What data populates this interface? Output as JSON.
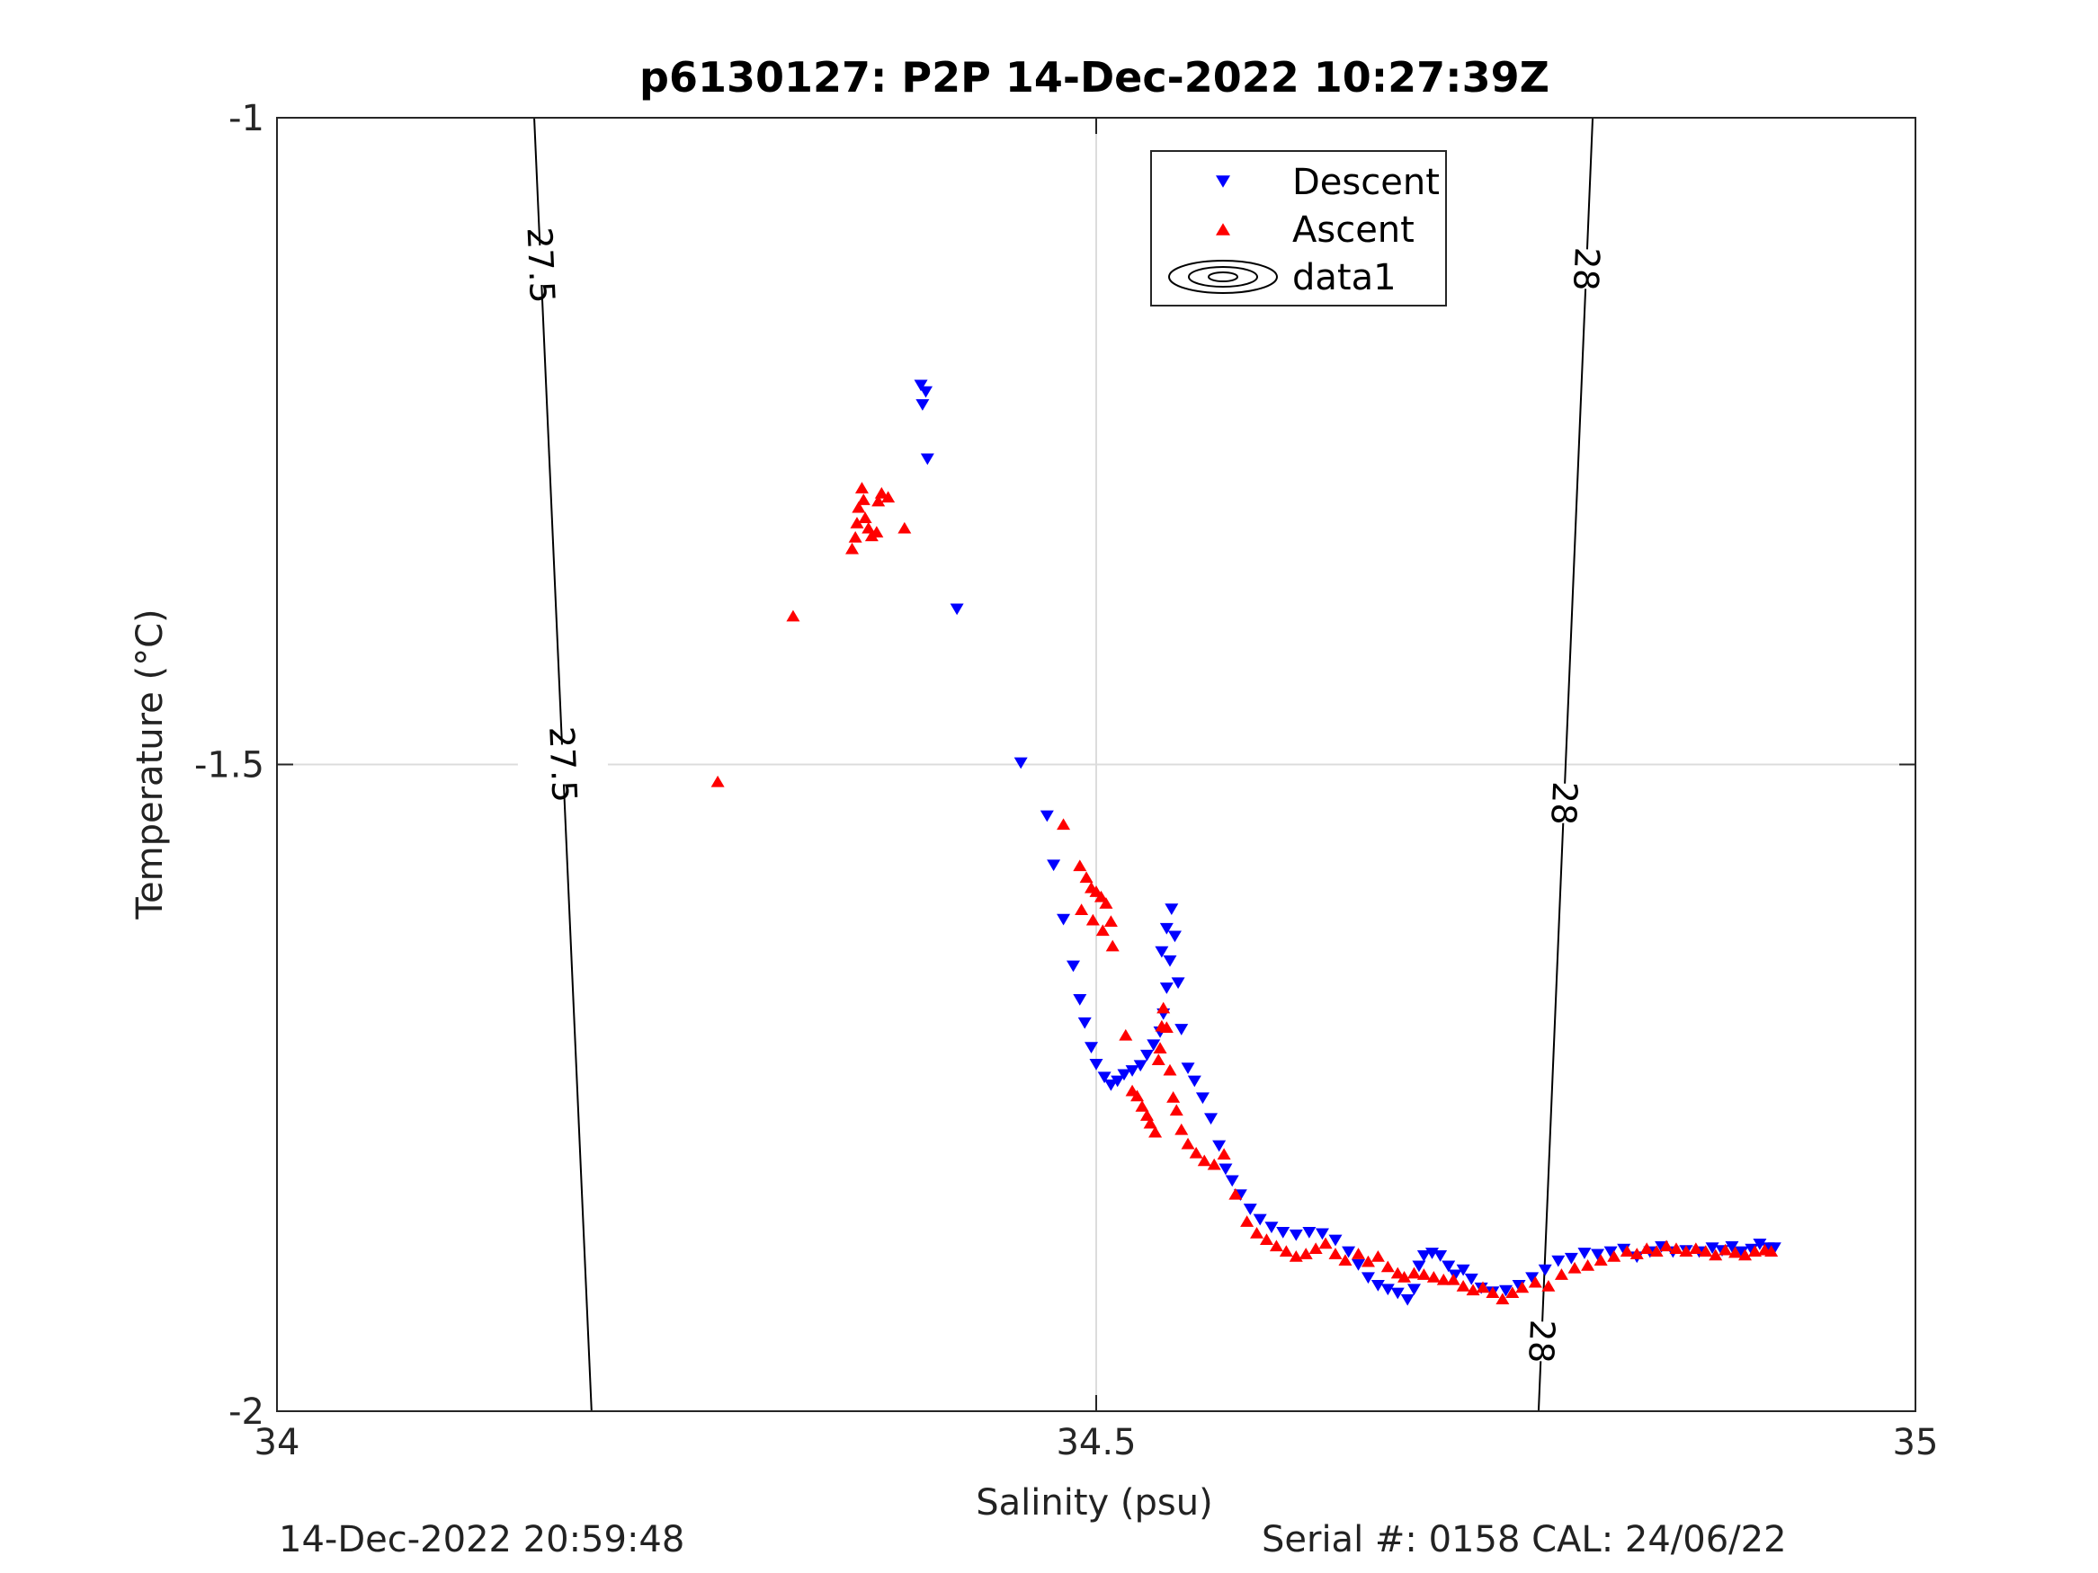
{
  "chart_data": {
    "type": "scatter",
    "title": "p6130127: P2P 14-Dec-2022 10:27:39Z",
    "xlabel": "Salinity (psu)",
    "ylabel": "Temperature (°C)",
    "xlim": [
      34,
      35
    ],
    "ylim": [
      -2,
      -1
    ],
    "xticks": [
      34,
      34.5,
      35
    ],
    "xtick_labels": [
      "34",
      "34.5",
      "35"
    ],
    "yticks": [
      -2,
      -1.5,
      -1
    ],
    "ytick_labels": [
      "-2",
      "-1.5",
      "-1"
    ],
    "grid": true,
    "legend_position": "top-center",
    "legend": [
      {
        "label": "Descent",
        "marker": "triangle-down",
        "color": "#0000ff"
      },
      {
        "label": "Ascent",
        "marker": "triangle-up",
        "color": "#ff0000"
      },
      {
        "label": "data1",
        "marker": "contour",
        "color": "#000000"
      }
    ],
    "series": [
      {
        "name": "Descent",
        "color": "#0000ff",
        "marker": "triangle-down",
        "points": [
          [
            34.393,
            -1.207
          ],
          [
            34.396,
            -1.212
          ],
          [
            34.394,
            -1.222
          ],
          [
            34.397,
            -1.264
          ],
          [
            34.415,
            -1.38
          ],
          [
            34.454,
            -1.499
          ],
          [
            34.47,
            -1.54
          ],
          [
            34.474,
            -1.578
          ],
          [
            34.48,
            -1.62
          ],
          [
            34.486,
            -1.656
          ],
          [
            34.49,
            -1.682
          ],
          [
            34.493,
            -1.7
          ],
          [
            34.497,
            -1.719
          ],
          [
            34.5,
            -1.732
          ],
          [
            34.505,
            -1.742
          ],
          [
            34.509,
            -1.748
          ],
          [
            34.513,
            -1.745
          ],
          [
            34.517,
            -1.74
          ],
          [
            34.522,
            -1.737
          ],
          [
            34.527,
            -1.733
          ],
          [
            34.531,
            -1.725
          ],
          [
            34.535,
            -1.717
          ],
          [
            34.539,
            -1.707
          ],
          [
            34.541,
            -1.693
          ],
          [
            34.543,
            -1.673
          ],
          [
            34.545,
            -1.652
          ],
          [
            34.548,
            -1.633
          ],
          [
            34.546,
            -1.612
          ],
          [
            34.543,
            -1.627
          ],
          [
            34.54,
            -1.645
          ],
          [
            34.55,
            -1.669
          ],
          [
            34.552,
            -1.705
          ],
          [
            34.556,
            -1.735
          ],
          [
            34.56,
            -1.745
          ],
          [
            34.565,
            -1.758
          ],
          [
            34.57,
            -1.774
          ],
          [
            34.575,
            -1.795
          ],
          [
            34.579,
            -1.813
          ],
          [
            34.583,
            -1.822
          ],
          [
            34.588,
            -1.833
          ],
          [
            34.594,
            -1.844
          ],
          [
            34.6,
            -1.852
          ],
          [
            34.607,
            -1.858
          ],
          [
            34.614,
            -1.862
          ],
          [
            34.622,
            -1.864
          ],
          [
            34.63,
            -1.862
          ],
          [
            34.638,
            -1.863
          ],
          [
            34.646,
            -1.868
          ],
          [
            34.654,
            -1.877
          ],
          [
            34.66,
            -1.887
          ],
          [
            34.666,
            -1.897
          ],
          [
            34.672,
            -1.903
          ],
          [
            34.678,
            -1.906
          ],
          [
            34.684,
            -1.909
          ],
          [
            34.69,
            -1.914
          ],
          [
            34.694,
            -1.906
          ],
          [
            34.697,
            -1.888
          ],
          [
            34.7,
            -1.88
          ],
          [
            34.705,
            -1.878
          ],
          [
            34.71,
            -1.88
          ],
          [
            34.715,
            -1.888
          ],
          [
            34.719,
            -1.895
          ],
          [
            34.724,
            -1.891
          ],
          [
            34.729,
            -1.898
          ],
          [
            34.735,
            -1.905
          ],
          [
            34.742,
            -1.908
          ],
          [
            34.75,
            -1.907
          ],
          [
            34.758,
            -1.903
          ],
          [
            34.766,
            -1.897
          ],
          [
            34.774,
            -1.891
          ],
          [
            34.782,
            -1.884
          ],
          [
            34.79,
            -1.882
          ],
          [
            34.798,
            -1.878
          ],
          [
            34.806,
            -1.879
          ],
          [
            34.814,
            -1.877
          ],
          [
            34.822,
            -1.875
          ],
          [
            34.83,
            -1.881
          ],
          [
            34.838,
            -1.877
          ],
          [
            34.845,
            -1.873
          ],
          [
            34.852,
            -1.877
          ],
          [
            34.86,
            -1.876
          ],
          [
            34.868,
            -1.877
          ],
          [
            34.876,
            -1.874
          ],
          [
            34.882,
            -1.876
          ],
          [
            34.888,
            -1.873
          ],
          [
            34.894,
            -1.877
          ],
          [
            34.9,
            -1.875
          ],
          [
            34.905,
            -1.871
          ],
          [
            34.91,
            -1.874
          ],
          [
            34.914,
            -1.874
          ]
        ]
      },
      {
        "name": "Ascent",
        "color": "#ff0000",
        "marker": "triangle-up",
        "points": [
          [
            34.269,
            -1.513
          ],
          [
            34.315,
            -1.385
          ],
          [
            34.351,
            -1.333
          ],
          [
            34.353,
            -1.324
          ],
          [
            34.354,
            -1.313
          ],
          [
            34.355,
            -1.301
          ],
          [
            34.357,
            -1.286
          ],
          [
            34.358,
            -1.295
          ],
          [
            34.359,
            -1.309
          ],
          [
            34.361,
            -1.317
          ],
          [
            34.363,
            -1.323
          ],
          [
            34.366,
            -1.32
          ],
          [
            34.367,
            -1.296
          ],
          [
            34.369,
            -1.29
          ],
          [
            34.373,
            -1.293
          ],
          [
            34.383,
            -1.317
          ],
          [
            34.48,
            -1.546
          ],
          [
            34.49,
            -1.578
          ],
          [
            34.494,
            -1.587
          ],
          [
            34.497,
            -1.595
          ],
          [
            34.5,
            -1.598
          ],
          [
            34.503,
            -1.602
          ],
          [
            34.506,
            -1.607
          ],
          [
            34.509,
            -1.621
          ],
          [
            34.498,
            -1.62
          ],
          [
            34.491,
            -1.612
          ],
          [
            34.504,
            -1.628
          ],
          [
            34.51,
            -1.64
          ],
          [
            34.518,
            -1.709
          ],
          [
            34.522,
            -1.752
          ],
          [
            34.525,
            -1.756
          ],
          [
            34.528,
            -1.764
          ],
          [
            34.531,
            -1.771
          ],
          [
            34.533,
            -1.777
          ],
          [
            34.536,
            -1.784
          ],
          [
            34.538,
            -1.728
          ],
          [
            34.539,
            -1.719
          ],
          [
            34.54,
            -1.702
          ],
          [
            34.541,
            -1.688
          ],
          [
            34.543,
            -1.703
          ],
          [
            34.545,
            -1.736
          ],
          [
            34.547,
            -1.757
          ],
          [
            34.549,
            -1.767
          ],
          [
            34.552,
            -1.782
          ],
          [
            34.556,
            -1.793
          ],
          [
            34.561,
            -1.8
          ],
          [
            34.566,
            -1.806
          ],
          [
            34.572,
            -1.809
          ],
          [
            34.578,
            -1.801
          ],
          [
            34.585,
            -1.832
          ],
          [
            34.592,
            -1.853
          ],
          [
            34.598,
            -1.862
          ],
          [
            34.604,
            -1.867
          ],
          [
            34.61,
            -1.872
          ],
          [
            34.616,
            -1.876
          ],
          [
            34.622,
            -1.88
          ],
          [
            34.628,
            -1.878
          ],
          [
            34.634,
            -1.874
          ],
          [
            34.64,
            -1.87
          ],
          [
            34.646,
            -1.878
          ],
          [
            34.652,
            -1.883
          ],
          [
            34.66,
            -1.878
          ],
          [
            34.666,
            -1.884
          ],
          [
            34.672,
            -1.88
          ],
          [
            34.678,
            -1.888
          ],
          [
            34.684,
            -1.893
          ],
          [
            34.688,
            -1.896
          ],
          [
            34.694,
            -1.893
          ],
          [
            34.7,
            -1.894
          ],
          [
            34.706,
            -1.896
          ],
          [
            34.712,
            -1.898
          ],
          [
            34.718,
            -1.898
          ],
          [
            34.724,
            -1.903
          ],
          [
            34.73,
            -1.906
          ],
          [
            34.736,
            -1.904
          ],
          [
            34.742,
            -1.908
          ],
          [
            34.748,
            -1.913
          ],
          [
            34.754,
            -1.908
          ],
          [
            34.76,
            -1.904
          ],
          [
            34.768,
            -1.9
          ],
          [
            34.776,
            -1.903
          ],
          [
            34.784,
            -1.894
          ],
          [
            34.792,
            -1.889
          ],
          [
            34.8,
            -1.887
          ],
          [
            34.808,
            -1.883
          ],
          [
            34.816,
            -1.88
          ],
          [
            34.824,
            -1.876
          ],
          [
            34.83,
            -1.878
          ],
          [
            34.836,
            -1.874
          ],
          [
            34.842,
            -1.876
          ],
          [
            34.848,
            -1.872
          ],
          [
            34.854,
            -1.874
          ],
          [
            34.86,
            -1.876
          ],
          [
            34.866,
            -1.874
          ],
          [
            34.872,
            -1.876
          ],
          [
            34.878,
            -1.879
          ],
          [
            34.884,
            -1.875
          ],
          [
            34.89,
            -1.877
          ],
          [
            34.896,
            -1.879
          ],
          [
            34.902,
            -1.876
          ],
          [
            34.908,
            -1.875
          ],
          [
            34.912,
            -1.876
          ]
        ]
      }
    ],
    "contours": [
      {
        "label": "27.5",
        "line": [
          [
            34.192,
            -2.0
          ],
          [
            34.157,
            -1.0
          ]
        ],
        "label_values": [
          -1.5,
          -1.114
        ]
      },
      {
        "label": "28",
        "line": [
          [
            34.77,
            -2.0
          ],
          [
            34.803,
            -1.0
          ]
        ],
        "label_values": [
          -1.946,
          -1.53,
          -1.117
        ]
      }
    ],
    "annotations": {
      "footer_left": "14-Dec-2022 20:59:48",
      "footer_right": "Serial #: 0158  CAL: 24/06/22"
    }
  }
}
